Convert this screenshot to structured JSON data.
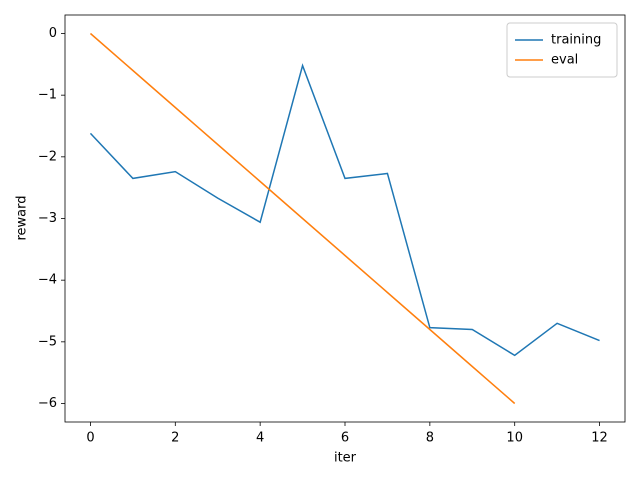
{
  "chart_data": {
    "type": "line",
    "x_label": "iter",
    "y_label": "reward",
    "x": [
      0,
      1,
      2,
      3,
      4,
      5,
      6,
      7,
      8,
      9,
      10,
      11,
      12
    ],
    "series": [
      {
        "name": "training",
        "color": "#1f77b4",
        "values": [
          -1.62,
          -2.35,
          -2.24,
          -2.67,
          -3.06,
          -0.52,
          -2.35,
          -2.27,
          -4.77,
          -4.8,
          -5.22,
          -4.7,
          -4.98
        ]
      },
      {
        "name": "eval",
        "color": "#ff7f0e",
        "values": [
          0,
          -0.6,
          -1.2,
          -1.8,
          -2.4,
          -3.0,
          -3.6,
          -4.2,
          -4.8,
          -5.4,
          -6.0,
          null,
          null
        ]
      }
    ],
    "xlim": [
      -0.6,
      12.6
    ],
    "ylim": [
      -6.3,
      0.3
    ],
    "xticks": [
      0,
      2,
      4,
      6,
      8,
      10,
      12
    ],
    "yticks": [
      {
        "value": -6,
        "label": "−6"
      },
      {
        "value": -5,
        "label": "−5"
      },
      {
        "value": -4,
        "label": "−4"
      },
      {
        "value": -3,
        "label": "−3"
      },
      {
        "value": -2,
        "label": "−2"
      },
      {
        "value": -1,
        "label": "−1"
      },
      0
    ],
    "legend": "upper right",
    "grid": false
  }
}
